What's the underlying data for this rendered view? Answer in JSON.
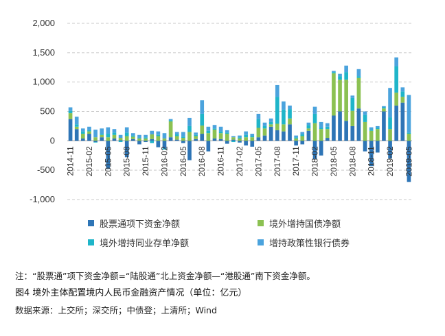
{
  "chart_data": {
    "type": "bar",
    "stacked": true,
    "title": "",
    "xlabel": "",
    "ylabel": "",
    "ylim": [
      -1000,
      2000
    ],
    "yticks": [
      -1000,
      -500,
      0,
      500,
      1000,
      1500,
      2000
    ],
    "ytick_labels": [
      "-1,000",
      "-500",
      "0",
      "500",
      "1,000",
      "1,500",
      "2,000"
    ],
    "grid": true,
    "legend_position": "bottom",
    "x_tick_labels": [
      "2014-11",
      "2015-02",
      "2015-05",
      "2015-08",
      "2015-11",
      "2016-02",
      "2016-05",
      "2016-08",
      "2016-11",
      "2017-02",
      "2017-05",
      "2017-08",
      "2017-11",
      "2018-02",
      "2018-05",
      "2018-08",
      "2018-11",
      "2019-02",
      "2019-05"
    ],
    "categories": [
      "2014-11",
      "2014-12",
      "2015-01",
      "2015-02",
      "2015-03",
      "2015-04",
      "2015-05",
      "2015-06",
      "2015-07",
      "2015-08",
      "2015-09",
      "2015-10",
      "2015-11",
      "2015-12",
      "2016-01",
      "2016-02",
      "2016-03",
      "2016-04",
      "2016-05",
      "2016-06",
      "2016-07",
      "2016-08",
      "2016-09",
      "2016-10",
      "2016-11",
      "2016-12",
      "2017-01",
      "2017-02",
      "2017-03",
      "2017-04",
      "2017-05",
      "2017-06",
      "2017-07",
      "2017-08",
      "2017-09",
      "2017-10",
      "2017-11",
      "2017-12",
      "2018-01",
      "2018-02",
      "2018-03",
      "2018-04",
      "2018-05",
      "2018-06",
      "2018-07",
      "2018-08",
      "2018-09",
      "2018-10",
      "2018-11",
      "2018-12",
      "2019-01",
      "2019-02",
      "2019-03",
      "2019-04",
      "2019-05"
    ],
    "series": [
      {
        "name": "股票通项下资金净额",
        "color": "#2e75b6",
        "values": [
          370,
          200,
          40,
          120,
          -20,
          60,
          -480,
          40,
          10,
          -280,
          30,
          -60,
          -20,
          30,
          -110,
          -130,
          60,
          20,
          -40,
          -330,
          30,
          120,
          -180,
          40,
          30,
          -50,
          20,
          -30,
          -80,
          -100,
          60,
          90,
          240,
          180,
          160,
          280,
          -80,
          -60,
          170,
          -310,
          -250,
          50,
          430,
          500,
          340,
          250,
          550,
          -180,
          -430,
          -200,
          500,
          -300,
          600,
          650,
          -700
        ]
      },
      {
        "name": "境外增持国债净额",
        "color": "#8cc152",
        "values": [
          100,
          40,
          80,
          40,
          60,
          40,
          60,
          60,
          40,
          80,
          40,
          40,
          40,
          80,
          80,
          40,
          270,
          60,
          50,
          150,
          50,
          140,
          130,
          150,
          100,
          120,
          40,
          40,
          60,
          60,
          160,
          120,
          40,
          110,
          120,
          100,
          40,
          80,
          40,
          300,
          200,
          150,
          720,
          540,
          700,
          260,
          520,
          320,
          170,
          200,
          50,
          200,
          220,
          100,
          120
        ]
      },
      {
        "name": "境外增持同业存单净额",
        "color": "#1fb5c9",
        "values": [
          40,
          40,
          40,
          20,
          -10,
          20,
          60,
          40,
          -20,
          60,
          20,
          10,
          20,
          -40,
          20,
          -20,
          20,
          30,
          20,
          100,
          20,
          200,
          40,
          20,
          30,
          20,
          -20,
          20,
          40,
          20,
          150,
          40,
          40,
          460,
          250,
          160,
          20,
          30,
          60,
          160,
          20,
          40,
          20,
          60,
          130,
          220,
          30,
          120,
          20,
          20,
          20,
          200,
          450,
          90,
          20
        ]
      },
      {
        "name": "增持政策性银行债券",
        "color": "#4ba3dd",
        "values": [
          60,
          130,
          50,
          60,
          130,
          90,
          110,
          60,
          50,
          90,
          40,
          50,
          40,
          60,
          60,
          90,
          20,
          40,
          80,
          140,
          40,
          230,
          70,
          60,
          80,
          40,
          20,
          30,
          60,
          40,
          90,
          60,
          60,
          200,
          140,
          60,
          30,
          40,
          40,
          120,
          100,
          60,
          20,
          40,
          110,
          40,
          120,
          60,
          40,
          30,
          20,
          500,
          150,
          70,
          640
        ]
      }
    ]
  },
  "legend": [
    {
      "label": "股票通项下资金净额",
      "color": "#2e75b6"
    },
    {
      "label": "境外增持国债净额",
      "color": "#8cc152"
    },
    {
      "label": "境外增持同业存单净额",
      "color": "#1fb5c9"
    },
    {
      "label": "增持政策性银行债券",
      "color": "#4ba3dd"
    }
  ],
  "note": "注：“股票通”项下资金净额=“陆股通”北上资金净额—“港股通”南下资金净额。",
  "caption": "图4   境外主体配置境内人民币金融资产情况（单位：亿元）",
  "source": "数据来源：上交所；深交所；中债登；上清所；Wind"
}
